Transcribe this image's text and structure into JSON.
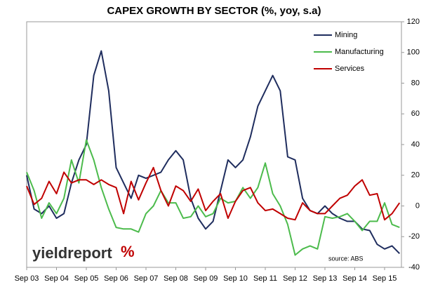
{
  "chart_data": {
    "type": "line",
    "title": "CAPEX GROWTH BY SECTOR (%, yoy, s.a)",
    "categories": [
      "Sep 03",
      null,
      null,
      null,
      "Sep 04",
      null,
      null,
      null,
      "Sep 05",
      null,
      null,
      null,
      "Sep 06",
      null,
      null,
      null,
      "Sep 07",
      null,
      null,
      null,
      "Sep 08",
      null,
      null,
      null,
      "Sep 09",
      null,
      null,
      null,
      "Sep 10",
      null,
      null,
      null,
      "Sep 11",
      null,
      null,
      null,
      "Sep 12",
      null,
      null,
      null,
      "Sep 13",
      null,
      null,
      null,
      "Sep 14",
      null,
      null,
      null,
      "Sep 15",
      null,
      null
    ],
    "series": [
      {
        "name": "Mining",
        "color": "#1f2d5e",
        "values": [
          20,
          -2,
          -5,
          0,
          -8,
          -5,
          15,
          30,
          40,
          85,
          101,
          75,
          25,
          15,
          5,
          20,
          18,
          20,
          22,
          30,
          36,
          30,
          5,
          -8,
          -15,
          -10,
          10,
          30,
          25,
          30,
          45,
          65,
          75,
          85,
          75,
          32,
          30,
          5,
          -3,
          -5,
          0,
          -5,
          -8,
          -10,
          -10,
          -15,
          -16,
          -25,
          -28,
          -26,
          -31
        ]
      },
      {
        "name": "Manufacturing",
        "color": "#4cbb4c",
        "values": [
          22,
          10,
          -8,
          2,
          -5,
          5,
          30,
          15,
          43,
          30,
          12,
          -2,
          -14,
          -15,
          -15,
          -17,
          -5,
          0,
          10,
          2,
          2,
          -8,
          -7,
          0,
          -7,
          -5,
          5,
          2,
          3,
          12,
          5,
          12,
          28,
          8,
          0,
          -12,
          -32,
          -28,
          -26,
          -28,
          -7,
          -8,
          -7,
          -5,
          -10,
          -16,
          -10,
          -10,
          2,
          -12,
          -14
        ]
      },
      {
        "name": "Services",
        "color": "#c00000",
        "values": [
          13,
          1,
          5,
          16,
          8,
          22,
          15,
          17,
          17,
          14,
          17,
          14,
          12,
          -5,
          16,
          4,
          15,
          25,
          10,
          0,
          13,
          10,
          3,
          11,
          -3,
          3,
          8,
          -8,
          3,
          10,
          12,
          2,
          -3,
          -2,
          -5,
          -8,
          -9,
          2,
          -3,
          -5,
          -5,
          0,
          5,
          7,
          13,
          17,
          7,
          8,
          -9,
          -5,
          2
        ]
      }
    ],
    "ylim": [
      -40,
      120
    ],
    "yticks": [
      -40,
      -20,
      0,
      20,
      40,
      60,
      80,
      100,
      120
    ],
    "grid": false,
    "legend": "upper right",
    "logo": "yieldreport",
    "logo_mark": "%",
    "source": "source: ABS"
  }
}
